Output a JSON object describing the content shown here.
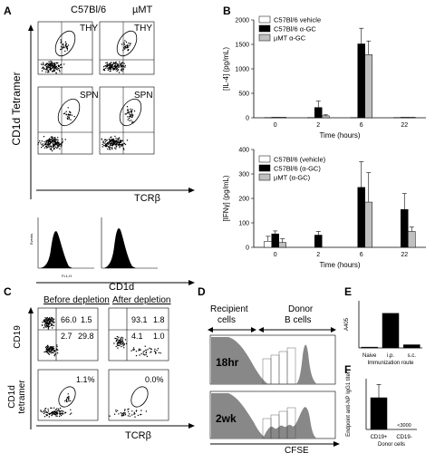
{
  "panel_labels": {
    "A": "A",
    "B": "B",
    "C": "C",
    "D": "D",
    "E": "E",
    "F": "F"
  },
  "panelA": {
    "col_headers": [
      "C57Bl/6",
      "µMT"
    ],
    "y_title": "CD1d Tetramer",
    "x_title": "TCRβ",
    "tissue_labels": [
      "THY",
      "THY",
      "SPN",
      "SPN"
    ],
    "histogram_x_title": "CD1d",
    "hist_axis_x": "FL1-H",
    "hist_axis_y": "Events",
    "hist_ticks": [
      "10⁰",
      "10¹",
      "10²",
      "10³",
      "10⁴"
    ]
  },
  "panelC": {
    "before_label": "Before depletion",
    "after_label": "After depletion",
    "y_top": "CD19",
    "y_bottom_line1": "CD1d",
    "y_bottom_line2": "tetramer",
    "x_title": "TCRβ",
    "before_quadrants": [
      "66.0",
      "1.5",
      "2.7",
      "29.8"
    ],
    "after_quadrants": [
      "93.1",
      "1.8",
      "4.1",
      "1.0"
    ],
    "before_gate": "1.1%",
    "after_gate": "0.0%"
  },
  "panelD": {
    "recipient_label_1": "Recipient",
    "recipient_label_2": "cells",
    "donor_label_1": "Donor",
    "donor_label_2": "B cells",
    "time_top": "18hr",
    "time_bottom": "2wk",
    "x_title": "CFSE"
  },
  "chart_data": [
    {
      "type": "bar",
      "title": "",
      "ylabel": "[IL-4] (pg/mL)",
      "xlabel": "Time (hours)",
      "categories": [
        "0",
        "2",
        "6",
        "22"
      ],
      "ylim": [
        0,
        2000
      ],
      "yticks": [
        0,
        500,
        1000,
        1500,
        2000
      ],
      "series": [
        {
          "name": "C57Bl/6 vehicle",
          "color": "#ffffff",
          "values": [
            5,
            5,
            5,
            5
          ],
          "errors": [
            0,
            0,
            0,
            0
          ]
        },
        {
          "name": "C57Bl/6 α-GC",
          "color": "#000000",
          "values": [
            10,
            210,
            1510,
            10
          ],
          "errors": [
            0,
            130,
            320,
            0
          ]
        },
        {
          "name": "µMT α-GC",
          "color": "#c0c0c0",
          "values": [
            10,
            40,
            1290,
            10
          ],
          "errors": [
            0,
            20,
            280,
            0
          ]
        }
      ]
    },
    {
      "type": "bar",
      "title": "",
      "ylabel": "[IFNγ] (pg/mL)",
      "xlabel": "Time (hours)",
      "categories": [
        "0",
        "2",
        "6",
        "22"
      ],
      "ylim": [
        0,
        400
      ],
      "yticks": [
        0,
        100,
        200,
        300,
        400
      ],
      "series": [
        {
          "name": "C57Bl/6 (vehicle)",
          "color": "#ffffff",
          "values": [
            25,
            0,
            0,
            0
          ],
          "errors": [
            20,
            0,
            0,
            0
          ]
        },
        {
          "name": "C57Bl/6 (α-GC)",
          "color": "#000000",
          "values": [
            55,
            50,
            245,
            155
          ],
          "errors": [
            12,
            15,
            105,
            65
          ]
        },
        {
          "name": "µMT (α-GC)",
          "color": "#c0c0c0",
          "values": [
            20,
            0,
            185,
            65
          ],
          "errors": [
            15,
            0,
            120,
            18
          ]
        }
      ]
    },
    {
      "type": "bar",
      "title": "",
      "ylabel": "A405",
      "xlabel": "Immunization route",
      "categories": [
        "Naive",
        "i.p.",
        "s.c."
      ],
      "ylim": [
        0,
        0.6
      ],
      "series": [
        {
          "name": "",
          "color": "#000000",
          "values": [
            0.01,
            0.44,
            0.04
          ],
          "errors": [
            0,
            0,
            0
          ]
        }
      ]
    },
    {
      "type": "bar",
      "title": "",
      "ylabel": "Endpoint anti-NP IgG1 titer",
      "xlabel": "Donor cells",
      "categories": [
        "CD19+",
        "CD19-"
      ],
      "ylim": [
        0,
        1.6
      ],
      "annotations": [
        "<3000"
      ],
      "series": [
        {
          "name": "",
          "color": "#000000",
          "values": [
            1.0,
            0.0
          ],
          "errors": [
            0.42,
            0
          ]
        }
      ]
    }
  ]
}
